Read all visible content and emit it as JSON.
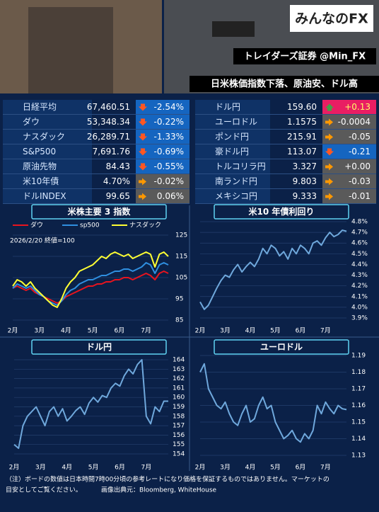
{
  "header": {
    "logo": "みんなのFX",
    "brand": "トレイダーズ証券 @Min_FX",
    "headline": "日米株価指数下落、原油安、ドル高"
  },
  "table": {
    "left": [
      {
        "name": "日経平均",
        "value": "67,460.51",
        "change": "-2.54%",
        "dir": "down"
      },
      {
        "name": "ダウ",
        "value": "53,348.34",
        "change": "-0.22%",
        "dir": "down"
      },
      {
        "name": "ナスダック",
        "value": "26,289.71",
        "change": "-1.33%",
        "dir": "down"
      },
      {
        "name": "S&P500",
        "value": "7,691.76",
        "change": "-0.69%",
        "dir": "down"
      },
      {
        "name": "原油先物",
        "value": "84.43",
        "change": "-0.55%",
        "dir": "down"
      },
      {
        "name": "米10年債",
        "value": "4.70%",
        "change": "-0.02%",
        "dir": "flat"
      },
      {
        "name": "ドルINDEX",
        "value": "99.65",
        "change": "0.06%",
        "dir": "flat"
      }
    ],
    "right": [
      {
        "name": "ドル円",
        "value": "159.60",
        "change": "+0.13",
        "dir": "up"
      },
      {
        "name": "ユーロドル",
        "value": "1.1575",
        "change": "-0.0004",
        "dir": "flat"
      },
      {
        "name": "ポンド円",
        "value": "215.91",
        "change": "-0.05",
        "dir": "flat"
      },
      {
        "name": "豪ドル円",
        "value": "113.07",
        "change": "-0.21",
        "dir": "down"
      },
      {
        "name": "トルコリラ円",
        "value": "3.327",
        "change": "+0.00",
        "dir": "flat"
      },
      {
        "name": "南ランド円",
        "value": "9.803",
        "change": "-0.03",
        "dir": "flat"
      },
      {
        "name": "メキシコ円",
        "value": "9.333",
        "change": "-0.01",
        "dir": "flat"
      }
    ]
  },
  "chart_data": [
    {
      "type": "line",
      "title": "米株主要 3 指数",
      "annotation": "2026/2/20 終値=100",
      "grid": true,
      "categories": [
        "2月",
        null,
        null,
        null,
        null,
        null,
        "3月",
        null,
        null,
        null,
        null,
        null,
        "4月",
        null,
        null,
        null,
        null,
        null,
        "5月",
        null,
        null,
        null,
        null,
        null,
        "6月",
        null,
        null,
        null,
        null,
        null,
        "7月",
        null,
        null,
        null,
        null,
        null
      ],
      "series": [
        {
          "name": "ダウ",
          "color": "#e8141e",
          "values": [
            100,
            101,
            100,
            99,
            100,
            98,
            97,
            96,
            95,
            94,
            93,
            94,
            96,
            97,
            98,
            99,
            100,
            101,
            101,
            102,
            102,
            103,
            103,
            104,
            104,
            105,
            105,
            104,
            105,
            106,
            107,
            106,
            104,
            107,
            108,
            107
          ]
        },
        {
          "name": "sp500",
          "color": "#2f8fe0",
          "values": [
            100,
            102,
            101,
            100,
            101,
            99,
            97,
            96,
            94,
            93,
            92,
            94,
            97,
            99,
            100,
            102,
            103,
            104,
            104,
            105,
            106,
            106,
            107,
            108,
            108,
            109,
            109,
            108,
            109,
            110,
            112,
            111,
            107,
            111,
            112,
            111
          ]
        },
        {
          "name": "ナスダック",
          "color": "#ffff33",
          "values": [
            101,
            104,
            103,
            101,
            103,
            100,
            98,
            96,
            94,
            92,
            91,
            95,
            100,
            103,
            105,
            108,
            109,
            110,
            111,
            113,
            115,
            114,
            116,
            117,
            116,
            115,
            116,
            114,
            115,
            116,
            117,
            116,
            110,
            116,
            117,
            115
          ]
        }
      ],
      "ylim": [
        85,
        125
      ],
      "yticks": [
        85,
        95,
        105,
        115,
        125
      ]
    },
    {
      "type": "line",
      "title": "米10 年債利回り",
      "grid": true,
      "color": "#6fa8dc",
      "categories": [
        "2月",
        null,
        null,
        null,
        null,
        null,
        "3月",
        null,
        null,
        null,
        null,
        null,
        "4月",
        null,
        null,
        null,
        null,
        null,
        "5月",
        null,
        null,
        null,
        null,
        null,
        "6月",
        null,
        null,
        null,
        null,
        null,
        "7月",
        null,
        null,
        null,
        null,
        null
      ],
      "values": [
        4.05,
        3.98,
        4.02,
        4.1,
        4.18,
        4.25,
        4.3,
        4.28,
        4.35,
        4.4,
        4.33,
        4.38,
        4.42,
        4.38,
        4.45,
        4.55,
        4.5,
        4.58,
        4.55,
        4.48,
        4.52,
        4.45,
        4.55,
        4.5,
        4.58,
        4.55,
        4.5,
        4.6,
        4.62,
        4.58,
        4.65,
        4.7,
        4.66,
        4.68,
        4.72,
        4.71
      ],
      "ylim": [
        3.9,
        4.8
      ],
      "yticks": [
        {
          "value": 3.9,
          "label": "3.9%"
        },
        {
          "value": 4.0,
          "label": "4.0%"
        },
        {
          "value": 4.1,
          "label": "4.1%"
        },
        {
          "value": 4.2,
          "label": "4.2%"
        },
        {
          "value": 4.3,
          "label": "4.3%"
        },
        {
          "value": 4.4,
          "label": "4.4%"
        },
        {
          "value": 4.5,
          "label": "4.5%"
        },
        {
          "value": 4.6,
          "label": "4.6%"
        },
        {
          "value": 4.7,
          "label": "4.7%"
        },
        {
          "value": 4.8,
          "label": "4.8%"
        }
      ]
    },
    {
      "type": "line",
      "title": "ドル円",
      "grid": true,
      "color": "#6fa8dc",
      "categories": [
        "2月",
        null,
        null,
        null,
        null,
        null,
        "3月",
        null,
        null,
        null,
        null,
        null,
        "4月",
        null,
        null,
        null,
        null,
        null,
        "5月",
        null,
        null,
        null,
        null,
        null,
        "6月",
        null,
        null,
        null,
        null,
        null,
        "7月",
        null,
        null,
        null,
        null,
        null
      ],
      "values": [
        155,
        154.6,
        157,
        158,
        158.5,
        159,
        158,
        157,
        158.5,
        159,
        158,
        158.8,
        157.5,
        158,
        158.6,
        159,
        158.2,
        159.4,
        160,
        159.5,
        160.2,
        160,
        161,
        161.5,
        161.2,
        162.3,
        163,
        162.5,
        163.5,
        164,
        158,
        157.2,
        159,
        158.5,
        159.6,
        159.6
      ],
      "ylim": [
        154,
        164
      ],
      "yticks": [
        154,
        155,
        156,
        157,
        158,
        159,
        160,
        161,
        162,
        163,
        164
      ]
    },
    {
      "type": "line",
      "title": "ユーロドル",
      "grid": true,
      "color": "#6fa8dc",
      "categories": [
        "2月",
        null,
        null,
        null,
        null,
        null,
        "3月",
        null,
        null,
        null,
        null,
        null,
        "4月",
        null,
        null,
        null,
        null,
        null,
        "5月",
        null,
        null,
        null,
        null,
        null,
        "6月",
        null,
        null,
        null,
        null,
        null,
        "7月",
        null,
        null,
        null,
        null,
        null
      ],
      "values": [
        1.18,
        1.185,
        1.17,
        1.165,
        1.16,
        1.158,
        1.162,
        1.155,
        1.15,
        1.148,
        1.155,
        1.16,
        1.15,
        1.152,
        1.16,
        1.165,
        1.158,
        1.16,
        1.15,
        1.145,
        1.14,
        1.142,
        1.145,
        1.14,
        1.138,
        1.143,
        1.14,
        1.145,
        1.16,
        1.155,
        1.162,
        1.158,
        1.155,
        1.16,
        1.158,
        1.1575
      ],
      "ylim": [
        1.13,
        1.19
      ],
      "yticks": [
        1.13,
        1.14,
        1.15,
        1.16,
        1.17,
        1.18,
        1.19
      ]
    }
  ],
  "footnote": {
    "lines": [
      "（注）ボードの数値は日本時間7時00分頃の参考レートになり価格を保証するものではありません。マーケットの",
      "目安としてご覧ください。",
      "画像出典元：Bloomberg, WhiteHouse"
    ]
  }
}
